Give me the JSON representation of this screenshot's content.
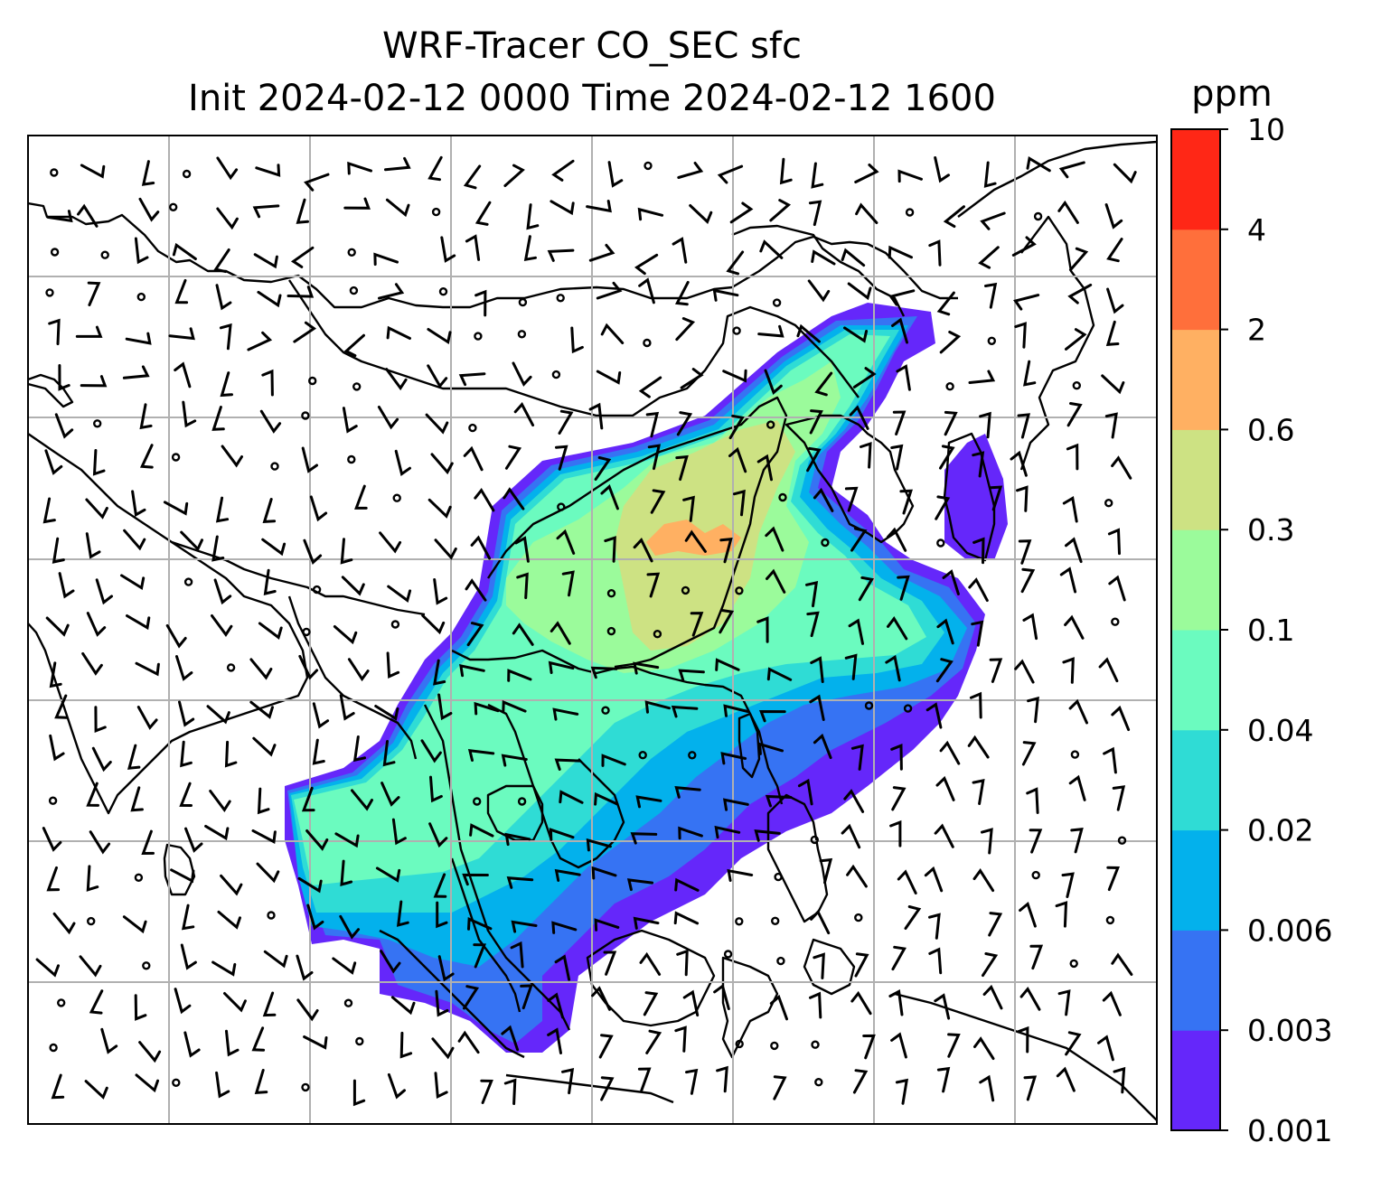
{
  "map": {
    "title_line1": "WRF-Tracer CO_SEC sfc",
    "title_line2": "Init 2024-02-12 0000 Time 2024-02-12 1600",
    "variable": "CO_SEC",
    "level": "sfc",
    "grid": "on",
    "wind_barbs": "on"
  },
  "colorbar": {
    "unit": "ppm",
    "ticks": [
      "0.001",
      "0.003",
      "0.006",
      "0.02",
      "0.04",
      "0.1",
      "0.3",
      "0.6",
      "2",
      "4",
      "10"
    ],
    "colors": [
      "#6527fa",
      "#3673f3",
      "#03b1ec",
      "#2fdcd5",
      "#6bfbbf",
      "#9bfb9b",
      "#cde283",
      "#ffb062",
      "#ff6f3b",
      "#ff2716"
    ]
  },
  "colors": {
    "coast": "#000000",
    "grid": "#b0b0b0"
  }
}
